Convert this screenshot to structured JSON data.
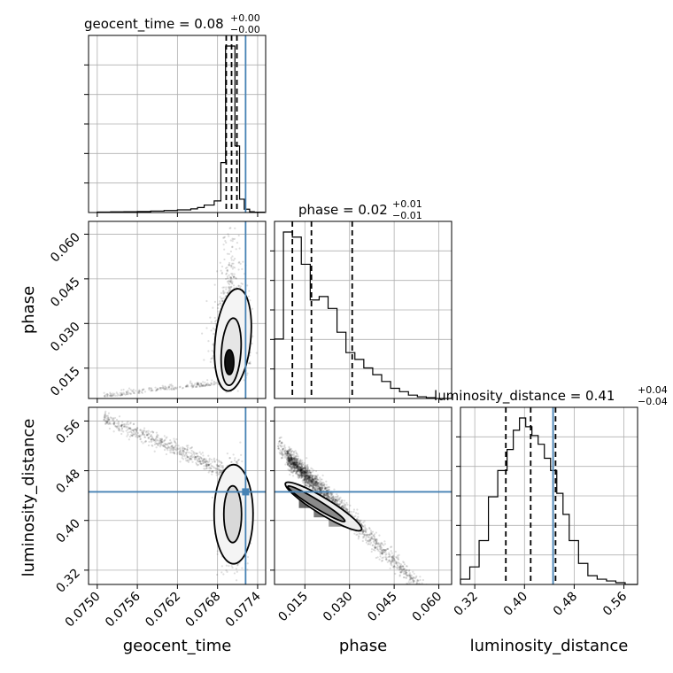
{
  "chart_data": {
    "type": "corner",
    "truth_color": "#4682b4",
    "parameters": [
      {
        "name": "geocent_time",
        "xlabel": "geocent_time",
        "title_main": "geocent_time = 0.08",
        "title_plus": "+0.00",
        "title_minus": "−0.00",
        "range": [
          0.07487,
          0.07752
        ],
        "ticks": [
          0.075,
          0.0756,
          0.0762,
          0.0768,
          0.0774
        ],
        "tick_labels": [
          "0.0750",
          "0.0756",
          "0.0762",
          "0.0768",
          "0.0774"
        ],
        "truth": 0.07722,
        "quantiles": [
          0.07693,
          0.07701,
          0.07709
        ],
        "hist_edges": [
          0.075,
          0.0752,
          0.0754,
          0.0756,
          0.0758,
          0.076,
          0.0762,
          0.0764,
          0.0765,
          0.0766,
          0.07675,
          0.07685,
          0.07692,
          0.07699,
          0.07706,
          0.07713,
          0.0772,
          0.07728,
          0.07735,
          0.0775
        ],
        "hist_counts": [
          0.3,
          0.4,
          0.5,
          0.6,
          0.9,
          1.2,
          1.6,
          2.2,
          3.0,
          4.5,
          7,
          30,
          100,
          100,
          40,
          8,
          2,
          0.5,
          0.2
        ]
      },
      {
        "name": "phase",
        "xlabel": "phase",
        "ylabel": "phase",
        "title_main": "phase = 0.02",
        "title_plus": "+0.01",
        "title_minus": "−0.01",
        "range": [
          0.0048,
          0.0643
        ],
        "ticks": [
          0.015,
          0.03,
          0.045,
          0.06
        ],
        "tick_labels": [
          "0.015",
          "0.030",
          "0.045",
          "0.060"
        ],
        "quantiles": [
          0.0108,
          0.0172,
          0.0309
        ],
        "hist_edges": [
          0.0048,
          0.0078,
          0.0108,
          0.0138,
          0.0168,
          0.0198,
          0.0228,
          0.0258,
          0.0288,
          0.0318,
          0.0348,
          0.0378,
          0.0408,
          0.0438,
          0.0468,
          0.0498,
          0.0528,
          0.0558,
          0.0588,
          0.0618,
          0.0643
        ],
        "hist_counts": [
          35,
          98,
          95,
          79,
          58,
          60,
          53,
          39,
          27,
          23,
          18,
          14,
          10,
          6,
          4,
          2,
          1,
          0.5,
          0,
          0
        ]
      },
      {
        "name": "luminosity_distance",
        "xlabel": "luminosity_distance",
        "ylabel": "luminosity_distance",
        "title_main": "luminosity_distance = 0.41",
        "title_plus": "+0.04",
        "title_minus": "−0.04",
        "range": [
          0.297,
          0.582
        ],
        "ticks": [
          0.32,
          0.4,
          0.48,
          0.56
        ],
        "tick_labels": [
          "0.32",
          "0.40",
          "0.48",
          "0.56"
        ],
        "truth": 0.446,
        "quantiles": [
          0.37,
          0.41,
          0.45
        ],
        "hist_edges": [
          0.297,
          0.312,
          0.327,
          0.342,
          0.357,
          0.372,
          0.382,
          0.392,
          0.402,
          0.412,
          0.422,
          0.432,
          0.442,
          0.452,
          0.462,
          0.472,
          0.487,
          0.502,
          0.517,
          0.532,
          0.547,
          0.562,
          0.582
        ],
        "hist_counts": [
          3,
          10,
          25,
          50,
          65,
          77,
          88,
          95,
          90,
          85,
          80,
          72,
          65,
          52,
          40,
          25,
          12,
          5,
          3,
          2,
          1,
          0
        ]
      }
    ],
    "phase_vs_time": {
      "x_range": [
        0.07487,
        0.07752
      ],
      "y_range": [
        0.0048,
        0.0643
      ],
      "truth_x": 0.07722,
      "density": [
        {
          "x": [
            0.0769,
            0.07712
          ],
          "y": [
            0.012,
            0.019
          ],
          "level": 0.9
        },
        {
          "x": [
            0.07692,
            0.0771
          ],
          "y": [
            0.019,
            0.025
          ],
          "level": 0.55
        },
        {
          "x": [
            0.07688,
            0.07714
          ],
          "y": [
            0.025,
            0.03
          ],
          "level": 0.2
        }
      ]
    },
    "distance_vs_time": {
      "x_range": [
        0.07487,
        0.07752
      ],
      "y_range": [
        0.297,
        0.582
      ],
      "truth_x": 0.07722,
      "truth_y": 0.446,
      "density": [
        {
          "x": [
            0.0769,
            0.0771
          ],
          "y": [
            0.39,
            0.44
          ],
          "level": 0.95
        },
        {
          "x": [
            0.07688,
            0.07712
          ],
          "y": [
            0.37,
            0.39
          ],
          "level": 0.5
        },
        {
          "x": [
            0.077,
            0.0772
          ],
          "y": [
            0.355,
            0.375
          ],
          "level": 0.35
        }
      ]
    },
    "distance_vs_phase": {
      "x_range": [
        0.0048,
        0.0643
      ],
      "y_range": [
        0.297,
        0.582
      ],
      "truth_y": 0.446,
      "density": [
        {
          "x": [
            0.013,
            0.018
          ],
          "y": [
            0.42,
            0.445
          ],
          "level": 0.8
        },
        {
          "x": [
            0.018,
            0.023
          ],
          "y": [
            0.405,
            0.425
          ],
          "level": 0.7
        },
        {
          "x": [
            0.023,
            0.029
          ],
          "y": [
            0.39,
            0.41
          ],
          "level": 0.5
        }
      ]
    }
  }
}
